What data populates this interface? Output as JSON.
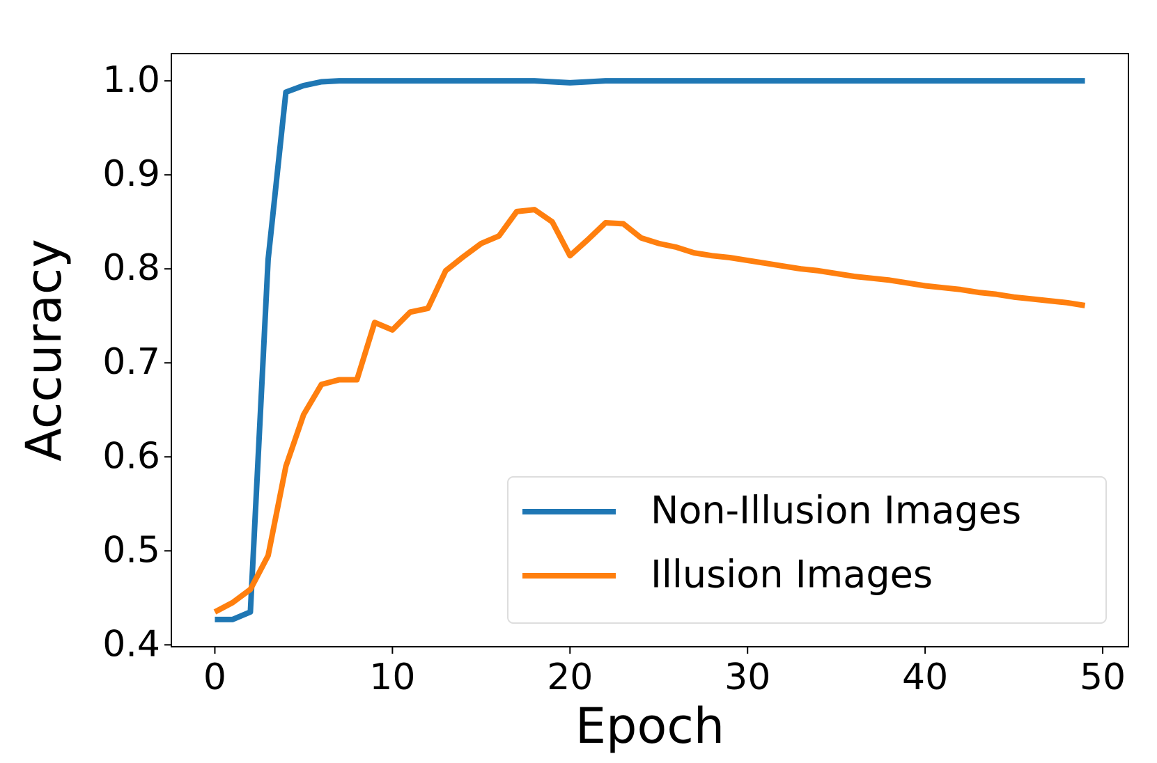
{
  "chart_data": {
    "type": "line",
    "x_label": "Epoch",
    "y_label": "Accuracy",
    "x": [
      0,
      1,
      2,
      3,
      4,
      5,
      6,
      7,
      8,
      9,
      10,
      11,
      12,
      13,
      14,
      15,
      16,
      17,
      18,
      19,
      20,
      21,
      22,
      23,
      24,
      25,
      26,
      27,
      28,
      29,
      30,
      31,
      32,
      33,
      34,
      35,
      36,
      37,
      38,
      39,
      40,
      41,
      42,
      43,
      44,
      45,
      46,
      47,
      48,
      49
    ],
    "series": [
      {
        "name": "Non-Illusion Images",
        "color": "#1f77b4",
        "values": [
          0.427,
          0.427,
          0.435,
          0.81,
          0.988,
          0.995,
          0.999,
          1.0,
          1.0,
          1.0,
          1.0,
          1.0,
          1.0,
          1.0,
          1.0,
          1.0,
          1.0,
          1.0,
          1.0,
          0.999,
          0.998,
          0.999,
          1.0,
          1.0,
          1.0,
          1.0,
          1.0,
          1.0,
          1.0,
          1.0,
          1.0,
          1.0,
          1.0,
          1.0,
          1.0,
          1.0,
          1.0,
          1.0,
          1.0,
          1.0,
          1.0,
          1.0,
          1.0,
          1.0,
          1.0,
          1.0,
          1.0,
          1.0,
          1.0,
          1.0
        ]
      },
      {
        "name": "Illusion Images",
        "color": "#ff7f0e",
        "values": [
          0.435,
          0.445,
          0.459,
          0.495,
          0.59,
          0.645,
          0.677,
          0.682,
          0.682,
          0.743,
          0.735,
          0.754,
          0.758,
          0.798,
          0.813,
          0.827,
          0.835,
          0.861,
          0.863,
          0.85,
          0.814,
          0.831,
          0.849,
          0.848,
          0.833,
          0.827,
          0.823,
          0.817,
          0.814,
          0.812,
          0.809,
          0.806,
          0.803,
          0.8,
          0.798,
          0.795,
          0.792,
          0.79,
          0.788,
          0.785,
          0.782,
          0.78,
          0.778,
          0.775,
          0.773,
          0.77,
          0.768,
          0.766,
          0.764,
          0.761
        ]
      }
    ],
    "xlim": [
      -2.45,
      51.45
    ],
    "ylim": [
      0.398,
      1.029
    ],
    "xticks": [
      0,
      10,
      20,
      30,
      40,
      50
    ],
    "yticks": [
      0.4,
      0.5,
      0.6,
      0.7,
      0.8,
      0.9,
      {
        "value": 1,
        "label": "1.0"
      }
    ],
    "legend": "lower right",
    "grid": false
  }
}
